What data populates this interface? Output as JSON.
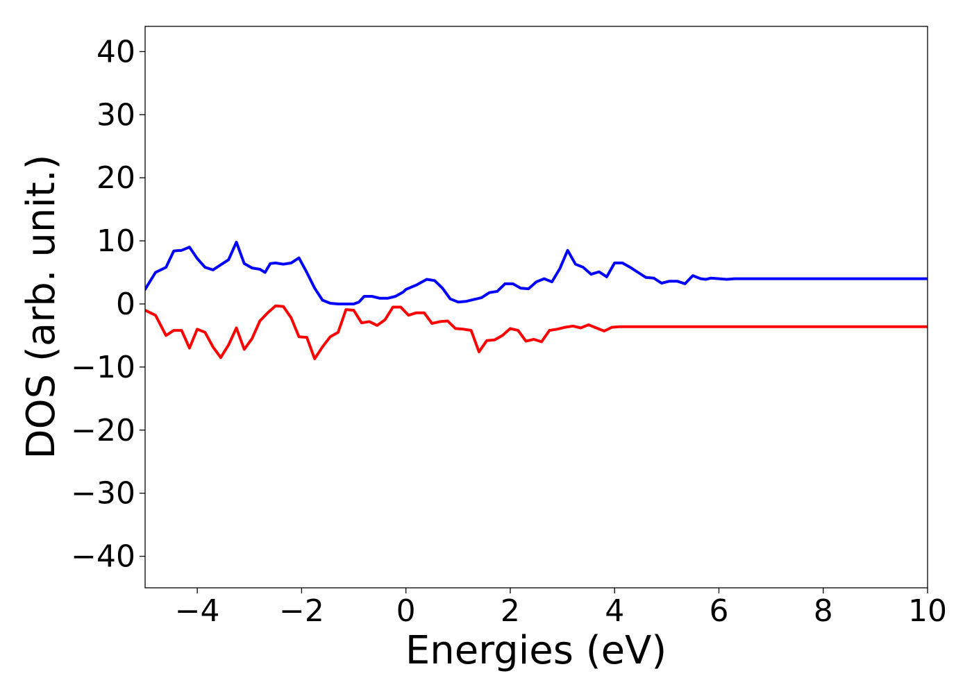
{
  "chart_data": {
    "type": "line",
    "xlabel": "Energies (eV)",
    "ylabel": "DOS (arb. unit.)",
    "xlim": [
      -5,
      10
    ],
    "ylim": [
      -45,
      44
    ],
    "x_ticks": [
      -4,
      -2,
      0,
      2,
      4,
      6,
      8,
      10
    ],
    "y_ticks": [
      -40,
      -30,
      -20,
      -10,
      0,
      10,
      20,
      30,
      40
    ],
    "x_tick_labels": [
      "−4",
      "−2",
      "0",
      "2",
      "4",
      "6",
      "8",
      "10"
    ],
    "y_tick_labels": [
      "−40",
      "−30",
      "−20",
      "−10",
      "0",
      "10",
      "20",
      "30",
      "40"
    ],
    "grid": false,
    "legend": "none",
    "series": [
      {
        "color": "#0000ff",
        "x": [
          -5.0,
          -4.8,
          -4.6,
          -4.45,
          -4.3,
          -4.15,
          -4.0,
          -3.85,
          -3.7,
          -3.55,
          -3.4,
          -3.25,
          -3.1,
          -2.95,
          -2.8,
          -2.7,
          -2.6,
          -2.5,
          -2.35,
          -2.2,
          -2.05,
          -1.9,
          -1.75,
          -1.6,
          -1.45,
          -1.3,
          -1.15,
          -1.0,
          -0.9,
          -0.8,
          -0.65,
          -0.5,
          -0.35,
          -0.2,
          -0.05,
          0.0,
          0.2,
          0.4,
          0.55,
          0.7,
          0.85,
          1.0,
          1.15,
          1.3,
          1.45,
          1.6,
          1.75,
          1.9,
          2.05,
          2.2,
          2.35,
          2.5,
          2.65,
          2.8,
          2.95,
          3.1,
          3.25,
          3.4,
          3.55,
          3.7,
          3.85,
          4.0,
          4.15,
          4.3,
          4.45,
          4.6,
          4.75,
          4.9,
          5.05,
          5.2,
          5.35,
          5.5,
          5.65,
          5.75,
          5.85,
          6.0,
          6.15,
          6.3,
          6.45,
          6.6,
          6.75,
          6.9,
          7.05,
          7.2,
          7.35,
          7.5,
          7.65,
          7.8,
          7.95,
          8.1,
          8.25,
          8.4,
          8.55,
          8.7,
          8.85,
          9.0,
          9.15,
          9.3,
          9.45,
          9.6,
          9.75,
          9.9,
          10.0
        ],
        "y": [
          2.3,
          5.0,
          5.8,
          8.4,
          8.5,
          9.0,
          7.2,
          5.8,
          5.4,
          6.2,
          7.0,
          9.8,
          6.4,
          5.7,
          5.5,
          5.0,
          6.4,
          6.5,
          6.3,
          6.5,
          7.3,
          5.0,
          2.5,
          0.6,
          0.1,
          0.0,
          0.0,
          0.0,
          0.3,
          1.2,
          1.2,
          0.9,
          0.9,
          1.2,
          1.9,
          2.3,
          3.0,
          3.9,
          3.7,
          2.5,
          0.8,
          0.3,
          0.4,
          0.7,
          1.0,
          1.8,
          2.0,
          3.2,
          3.2,
          2.5,
          2.4,
          3.5,
          4.0,
          3.5,
          5.6,
          8.5,
          6.3,
          5.8,
          4.7,
          5.1,
          4.3,
          6.5,
          6.5,
          5.8,
          5.0,
          4.2,
          4.1,
          3.3,
          3.6,
          3.6,
          3.2,
          4.5,
          4.0,
          3.9,
          4.1,
          4.0,
          3.9,
          4.0,
          4.0,
          4.0,
          4.0,
          4.0,
          4.0,
          4.0,
          4.0,
          4.0,
          4.0,
          4.0,
          4.0,
          4.0,
          4.0,
          4.0,
          4.0,
          4.0,
          4.0,
          4.0,
          4.0,
          4.0,
          4.0,
          4.0,
          4.0,
          4.0,
          4.0
        ]
      },
      {
        "color": "#ff0000",
        "x": [
          -5.0,
          -4.8,
          -4.6,
          -4.45,
          -4.3,
          -4.15,
          -4.0,
          -3.85,
          -3.7,
          -3.55,
          -3.4,
          -3.25,
          -3.1,
          -2.95,
          -2.8,
          -2.65,
          -2.5,
          -2.35,
          -2.2,
          -2.05,
          -1.9,
          -1.75,
          -1.6,
          -1.45,
          -1.3,
          -1.15,
          -1.0,
          -0.85,
          -0.7,
          -0.55,
          -0.4,
          -0.25,
          -0.1,
          0.05,
          0.2,
          0.35,
          0.5,
          0.65,
          0.8,
          0.95,
          1.1,
          1.25,
          1.4,
          1.55,
          1.7,
          1.85,
          2.0,
          2.15,
          2.3,
          2.45,
          2.6,
          2.75,
          2.9,
          3.05,
          3.2,
          3.35,
          3.5,
          3.65,
          3.8,
          3.95,
          4.1,
          4.25,
          4.4,
          4.55,
          4.7,
          4.85,
          5.0,
          5.15,
          5.3,
          5.45,
          5.6,
          5.75,
          5.9,
          6.05,
          6.2,
          6.35,
          6.5,
          6.65,
          6.8,
          6.95,
          7.1,
          7.25,
          7.4,
          7.55,
          7.7,
          7.85,
          8.0,
          8.15,
          8.3,
          8.45,
          8.6,
          8.75,
          8.9,
          9.05,
          9.2,
          9.35,
          9.5,
          9.65,
          9.8,
          10.0
        ],
        "y": [
          -1.0,
          -1.8,
          -5.0,
          -4.2,
          -4.2,
          -7.0,
          -4.0,
          -4.5,
          -6.8,
          -8.5,
          -6.5,
          -3.8,
          -7.2,
          -5.5,
          -2.7,
          -1.4,
          -0.3,
          -0.4,
          -2.2,
          -5.2,
          -5.3,
          -8.7,
          -6.8,
          -5.2,
          -4.5,
          -0.9,
          -1.0,
          -3.0,
          -2.8,
          -3.4,
          -2.5,
          -0.5,
          -0.5,
          -1.8,
          -1.4,
          -1.4,
          -3.1,
          -2.8,
          -2.7,
          -3.9,
          -4.0,
          -4.2,
          -7.6,
          -5.8,
          -5.7,
          -5.0,
          -3.9,
          -4.2,
          -5.9,
          -5.6,
          -6.0,
          -4.2,
          -4.0,
          -3.7,
          -3.5,
          -3.8,
          -3.3,
          -3.8,
          -4.3,
          -3.7,
          -3.6,
          -3.6,
          -3.6,
          -3.6,
          -3.6,
          -3.6,
          -3.6,
          -3.6,
          -3.6,
          -3.6,
          -3.6,
          -3.6,
          -3.6,
          -3.6,
          -3.6,
          -3.6,
          -3.6,
          -3.6,
          -3.6,
          -3.6,
          -3.6,
          -3.6,
          -3.6,
          -3.6,
          -3.6,
          -3.6,
          -3.6,
          -3.6,
          -3.6,
          -3.6,
          -3.6,
          -3.6,
          -3.6,
          -3.6,
          -3.6,
          -3.6,
          -3.6,
          -3.6,
          -3.6,
          -3.6
        ]
      }
    ]
  }
}
